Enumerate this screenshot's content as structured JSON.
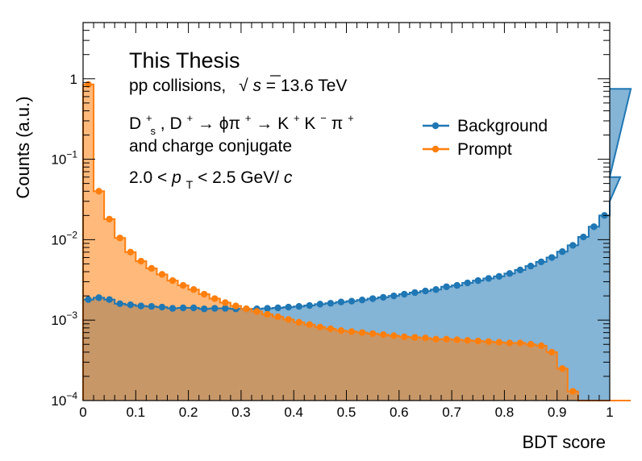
{
  "chart_data": {
    "type": "bar",
    "subtype": "step-histogram",
    "xlabel": "BDT score",
    "ylabel": "Counts (a.u.)",
    "xlim": [
      0,
      1
    ],
    "ylim": [
      0.0001,
      5
    ],
    "yscale": "log",
    "grid": false,
    "legend_position": "top-right",
    "x_ticks": [
      "0",
      "0.1",
      "0.2",
      "0.3",
      "0.4",
      "0.5",
      "0.6",
      "0.7",
      "0.8",
      "0.9",
      "1"
    ],
    "y_ticks": [
      {
        "value": 1,
        "base": "1",
        "exp": ""
      },
      {
        "value": 0.1,
        "base": "10",
        "exp": "−1"
      },
      {
        "value": 0.01,
        "base": "10",
        "exp": "−2"
      },
      {
        "value": 0.001,
        "base": "10",
        "exp": "−3"
      },
      {
        "value": 0.0001,
        "base": "10",
        "exp": "−4"
      }
    ],
    "annotations": {
      "line1": "This Thesis",
      "line2_prefix": "pp collisions,",
      "sqrt_symbol": "√",
      "sqrt_s": "s",
      "line2_suffix": " = 13.6 TeV",
      "decay_D": "D",
      "decay_s_sup": "+",
      "decay_s_sub": "s",
      "decay_rest1": ", D",
      "decay_sup1": "+",
      "decay_arrow1": " → ϕπ",
      "decay_sup2": "+",
      "decay_arrow2": "→ K",
      "decay_sup3": "+",
      "decay_K2": "K",
      "decay_sup4": "−",
      "decay_pi": "π",
      "decay_sup5": "+",
      "line4": "and charge conjugate",
      "pt_left": "2.0 < ",
      "pt_p": "p",
      "pt_sub": "T",
      "pt_right": " < 2.5 GeV/",
      "pt_c": "c"
    },
    "bin_width": 0.02,
    "series": [
      {
        "name": "Background",
        "color": "#1f77b4",
        "fill": "#7eb0d5",
        "values": [
          0.0018,
          0.0019,
          0.0018,
          0.0016,
          0.00155,
          0.0015,
          0.00148,
          0.00145,
          0.0014,
          0.00142,
          0.00142,
          0.00138,
          0.0014,
          0.0014,
          0.00138,
          0.00138,
          0.00138,
          0.0014,
          0.00142,
          0.00145,
          0.00148,
          0.00152,
          0.00158,
          0.00162,
          0.00168,
          0.00172,
          0.00178,
          0.00185,
          0.00192,
          0.002,
          0.0021,
          0.0022,
          0.0023,
          0.0024,
          0.0026,
          0.0027,
          0.0029,
          0.0031,
          0.0033,
          0.0035,
          0.0038,
          0.0042,
          0.0047,
          0.0053,
          0.006,
          0.0071,
          0.0085,
          0.0108,
          0.0145,
          0.02,
          0.03,
          0.06,
          0.75
        ]
      },
      {
        "name": "Prompt",
        "color": "#ff7f0e",
        "fill": "#ffb380",
        "values": [
          0.85,
          0.04,
          0.018,
          0.0105,
          0.007,
          0.0054,
          0.0044,
          0.0037,
          0.0031,
          0.0027,
          0.0024,
          0.0021,
          0.00185,
          0.00165,
          0.0015,
          0.00138,
          0.00128,
          0.00118,
          0.0011,
          0.00102,
          0.00094,
          0.00088,
          0.00082,
          0.00078,
          0.00074,
          0.00072,
          0.0007,
          0.00068,
          0.00066,
          0.00064,
          0.00062,
          0.00061,
          0.0006,
          0.00058,
          0.00058,
          0.00057,
          0.00056,
          0.00055,
          0.00054,
          0.00053,
          0.00052,
          0.00052,
          0.0005,
          0.00048,
          0.0004,
          0.00025,
          0.00013,
          8e-05,
          8e-05,
          8e-05,
          8e-05,
          8e-05,
          8e-05
        ]
      }
    ]
  }
}
